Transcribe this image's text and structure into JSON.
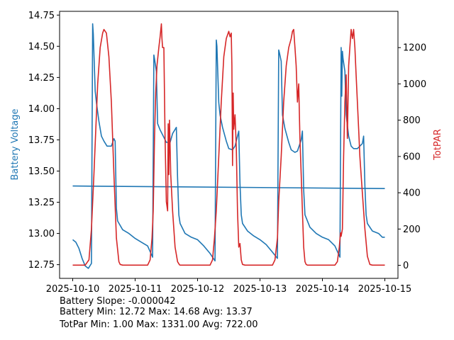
{
  "chart_data": {
    "type": "line",
    "dual_axis": true,
    "grid": false,
    "x_ticks": [
      "2025-10-10",
      "2025-10-11",
      "2025-10-12",
      "2025-10-13",
      "2025-10-14",
      "2025-10-15"
    ],
    "xlim_days": [
      -0.21,
      5.21
    ],
    "left_axis": {
      "label": "Battery Voltage",
      "color": "#1f77b4",
      "ylim": [
        12.64,
        14.78
      ],
      "ticks": [
        "12.75",
        "13.00",
        "13.25",
        "13.50",
        "13.75",
        "14.00",
        "14.25",
        "14.50",
        "14.75"
      ]
    },
    "right_axis": {
      "label": "TotPAR",
      "color": "#d62728",
      "ylim": [
        -72,
        1400
      ],
      "ticks": [
        "0",
        "200",
        "400",
        "600",
        "800",
        "1000",
        "1200"
      ]
    },
    "series": [
      {
        "axis": "left",
        "color": "#1f77b4",
        "x_days": [
          0.0,
          0.05,
          0.1,
          0.15,
          0.2,
          0.25,
          0.3,
          0.32,
          0.33,
          0.36,
          0.38,
          0.42,
          0.46,
          0.5,
          0.55,
          0.6,
          0.62,
          0.66,
          0.68,
          0.7,
          0.72,
          0.8,
          0.9,
          1.0,
          1.1,
          1.2,
          1.28,
          1.3,
          1.31,
          1.34,
          1.36,
          1.4,
          1.46,
          1.5,
          1.56,
          1.6,
          1.66,
          1.68,
          1.7,
          1.72,
          1.8,
          1.9,
          2.0,
          2.1,
          2.2,
          2.28,
          2.3,
          2.31,
          2.34,
          2.36,
          2.4,
          2.46,
          2.5,
          2.56,
          2.6,
          2.64,
          2.66,
          2.68,
          2.7,
          2.72,
          2.8,
          2.9,
          3.0,
          3.1,
          3.2,
          3.28,
          3.3,
          3.31,
          3.34,
          3.36,
          3.4,
          3.46,
          3.5,
          3.56,
          3.6,
          3.66,
          3.68,
          3.7,
          3.72,
          3.8,
          3.9,
          4.0,
          4.1,
          4.2,
          4.28,
          4.3,
          4.31,
          4.32,
          4.33,
          4.36,
          4.38,
          4.42,
          4.46,
          4.5,
          4.56,
          4.6,
          4.64,
          4.66,
          4.68,
          4.7,
          4.72,
          4.8,
          4.9,
          4.96,
          5.0
        ],
        "y": [
          12.95,
          12.93,
          12.88,
          12.8,
          12.74,
          12.72,
          12.76,
          14.68,
          14.6,
          14.14,
          14.05,
          13.9,
          13.78,
          13.74,
          13.7,
          13.7,
          13.7,
          13.76,
          13.74,
          13.2,
          13.1,
          13.03,
          13.0,
          12.96,
          12.93,
          12.9,
          12.81,
          14.43,
          14.4,
          14.3,
          13.88,
          13.83,
          13.77,
          13.73,
          13.73,
          13.8,
          13.85,
          13.45,
          13.15,
          13.08,
          13.0,
          12.97,
          12.95,
          12.9,
          12.84,
          12.78,
          14.55,
          14.5,
          14.05,
          13.95,
          13.85,
          13.74,
          13.68,
          13.67,
          13.7,
          13.78,
          13.82,
          13.4,
          13.15,
          13.08,
          13.02,
          12.98,
          12.95,
          12.91,
          12.85,
          12.8,
          14.47,
          14.45,
          14.38,
          13.95,
          13.84,
          13.73,
          13.67,
          13.65,
          13.66,
          13.75,
          13.82,
          13.35,
          13.15,
          13.05,
          13.0,
          12.97,
          12.95,
          12.9,
          12.81,
          14.49,
          14.1,
          14.46,
          14.4,
          14.3,
          13.95,
          13.78,
          13.7,
          13.68,
          13.68,
          13.7,
          13.72,
          13.78,
          13.38,
          13.15,
          13.08,
          13.02,
          13.0,
          12.97,
          12.97
        ]
      },
      {
        "axis": "left",
        "color": "#1f77b4",
        "x_days": [
          0.0,
          5.0
        ],
        "y": [
          13.38,
          13.36
        ]
      },
      {
        "axis": "right",
        "color": "#d62728",
        "x_days": [
          0.0,
          0.2,
          0.26,
          0.3,
          0.34,
          0.4,
          0.44,
          0.48,
          0.5,
          0.54,
          0.58,
          0.62,
          0.66,
          0.7,
          0.74,
          0.76,
          0.8,
          0.9,
          1.0,
          1.1,
          1.2,
          1.24,
          1.27,
          1.29,
          1.3,
          1.31,
          1.33,
          1.35,
          1.38,
          1.4,
          1.42,
          1.43,
          1.44,
          1.46,
          1.48,
          1.5,
          1.52,
          1.53,
          1.54,
          1.55,
          1.57,
          1.6,
          1.64,
          1.68,
          1.71,
          1.72,
          1.73,
          1.76,
          1.8,
          1.9,
          2.0,
          2.1,
          2.2,
          2.24,
          2.27,
          2.3,
          2.34,
          2.38,
          2.42,
          2.46,
          2.5,
          2.52,
          2.54,
          2.55,
          2.56,
          2.57,
          2.58,
          2.6,
          2.62,
          2.64,
          2.66,
          2.68,
          2.7,
          2.72,
          2.76,
          2.8,
          2.9,
          3.0,
          3.1,
          3.2,
          3.24,
          3.28,
          3.3,
          3.34,
          3.38,
          3.42,
          3.46,
          3.5,
          3.52,
          3.54,
          3.56,
          3.58,
          3.6,
          3.62,
          3.64,
          3.66,
          3.68,
          3.7,
          3.72,
          3.74,
          3.76,
          3.8,
          3.9,
          4.0,
          4.1,
          4.2,
          4.24,
          4.27,
          4.29,
          4.3,
          4.32,
          4.34,
          4.36,
          4.38,
          4.4,
          4.42,
          4.44,
          4.46,
          4.48,
          4.5,
          4.52,
          4.54,
          4.56,
          4.58,
          4.6,
          4.64,
          4.68,
          4.72,
          4.76,
          4.8,
          4.9,
          5.0
        ],
        "y": [
          1,
          1,
          30,
          200,
          500,
          1000,
          1200,
          1280,
          1300,
          1280,
          1150,
          900,
          500,
          150,
          20,
          5,
          1,
          1,
          1,
          1,
          1,
          30,
          150,
          300,
          500,
          700,
          950,
          1100,
          1200,
          1260,
          1331,
          1250,
          1200,
          1200,
          700,
          350,
          300,
          780,
          500,
          800,
          500,
          300,
          100,
          20,
          3,
          1,
          1,
          1,
          1,
          1,
          1,
          1,
          1,
          30,
          150,
          300,
          600,
          900,
          1150,
          1250,
          1290,
          1260,
          1280,
          1100,
          550,
          950,
          750,
          830,
          650,
          300,
          100,
          120,
          30,
          5,
          1,
          1,
          1,
          1,
          1,
          1,
          30,
          150,
          350,
          600,
          900,
          1100,
          1200,
          1250,
          1290,
          1300,
          1200,
          1100,
          900,
          1000,
          700,
          500,
          300,
          100,
          20,
          5,
          1,
          1,
          1,
          1,
          1,
          1,
          20,
          100,
          180,
          160,
          200,
          600,
          900,
          1050,
          700,
          1100,
          1200,
          1300,
          1250,
          1300,
          1200,
          1050,
          900,
          750,
          600,
          400,
          200,
          50,
          5,
          1,
          1,
          1
        ]
      }
    ],
    "stats": [
      "Battery Slope: -0.000042",
      "Battery Min: 12.72 Max: 14.68 Avg: 13.37",
      "TotPar Min: 1.00 Max: 1331.00 Avg: 722.00"
    ]
  }
}
